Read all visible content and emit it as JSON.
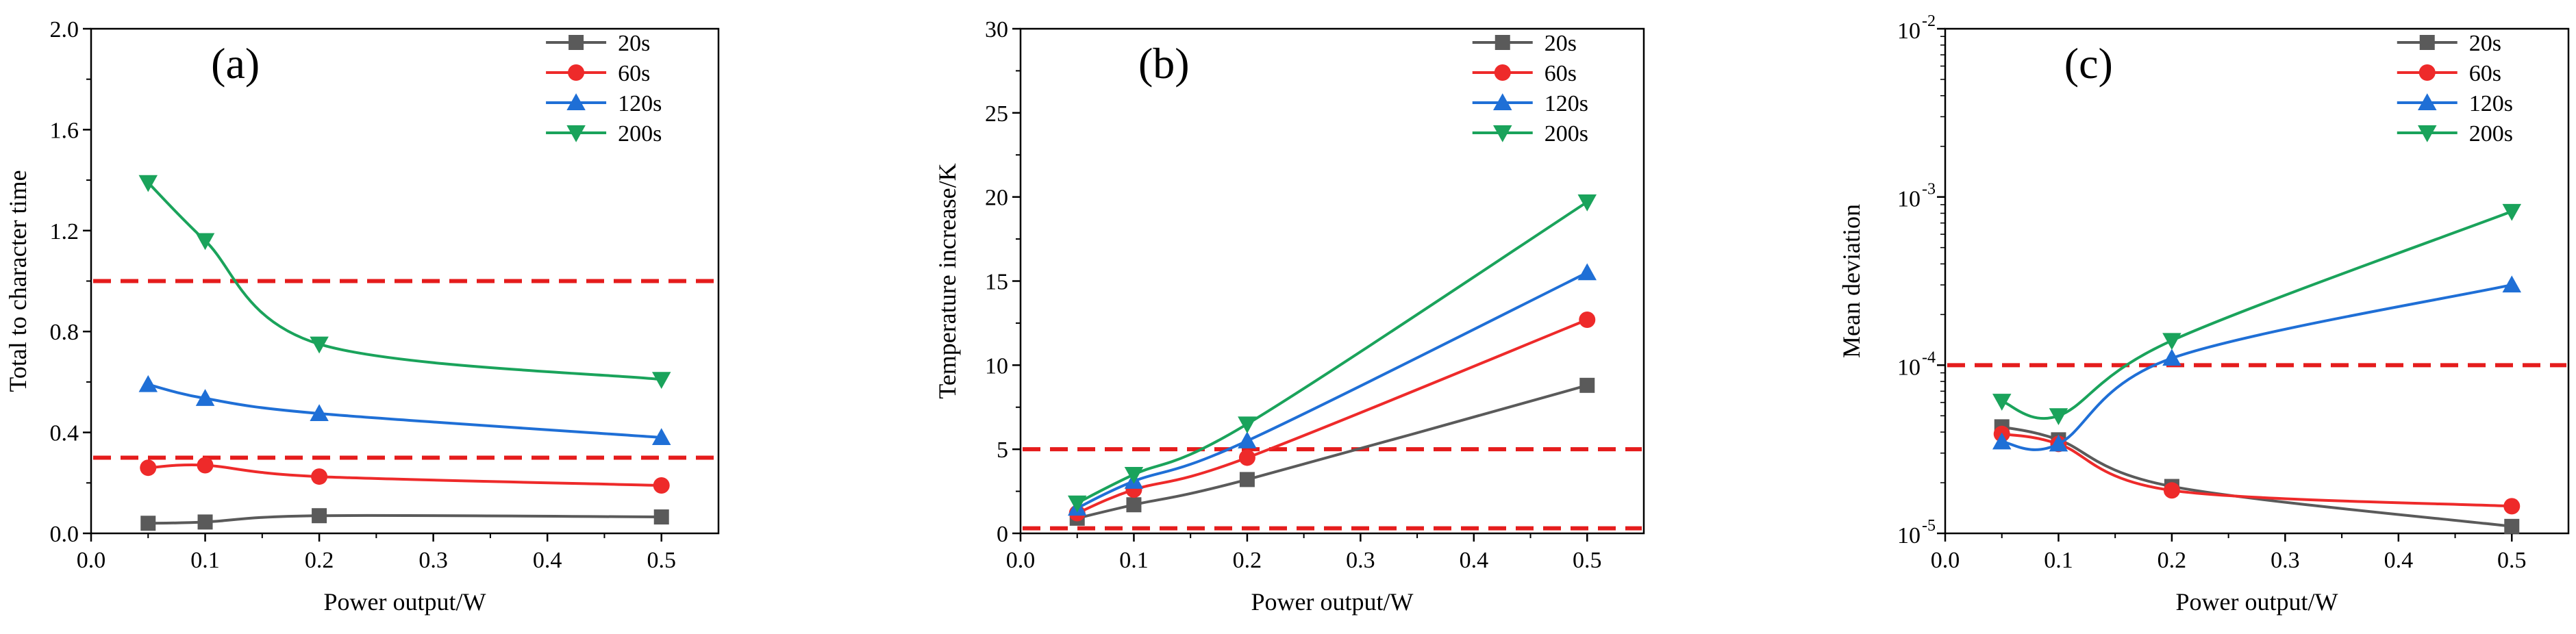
{
  "chart_data": [
    {
      "type": "line",
      "panel_label": "(a)",
      "xlabel": "Power output/W",
      "ylabel": "Total to character time",
      "xlim": [
        0.0,
        0.55
      ],
      "ylim": [
        0.0,
        2.0
      ],
      "yscale": "linear",
      "x_ticks": [
        "0.0",
        "0.1",
        "0.2",
        "0.3",
        "0.4",
        "0.5"
      ],
      "y_ticks": [
        "0.0",
        "0.4",
        "0.8",
        "1.2",
        "1.6",
        "2.0"
      ],
      "x": [
        0.05,
        0.1,
        0.2,
        0.5
      ],
      "series": [
        {
          "name": "20s",
          "color": "#5a5a5a",
          "marker": "square",
          "values": [
            0.04,
            0.045,
            0.07,
            0.065
          ]
        },
        {
          "name": "60s",
          "color": "#ee2a2a",
          "marker": "circle",
          "values": [
            0.26,
            0.27,
            0.225,
            0.19
          ]
        },
        {
          "name": "120s",
          "color": "#1f6fd6",
          "marker": "triangle-up",
          "values": [
            0.59,
            0.535,
            0.475,
            0.38
          ]
        },
        {
          "name": "200s",
          "color": "#1aa35b",
          "marker": "triangle-down",
          "values": [
            1.39,
            1.16,
            0.75,
            0.61
          ]
        }
      ],
      "reference_lines": [
        1.0,
        0.3
      ],
      "reference_color": "#e51c1c"
    },
    {
      "type": "line",
      "panel_label": "(b)",
      "xlabel": "Power output/W",
      "ylabel": "Temperature increase/K",
      "xlim": [
        0.0,
        0.55
      ],
      "ylim": [
        0,
        30
      ],
      "yscale": "linear",
      "x_ticks": [
        "0.0",
        "0.1",
        "0.2",
        "0.3",
        "0.4",
        "0.5"
      ],
      "y_ticks": [
        "0",
        "5",
        "10",
        "15",
        "20",
        "25",
        "30"
      ],
      "x": [
        0.05,
        0.1,
        0.2,
        0.5
      ],
      "series": [
        {
          "name": "20s",
          "color": "#5a5a5a",
          "marker": "square",
          "values": [
            0.9,
            1.7,
            3.2,
            8.8
          ]
        },
        {
          "name": "60s",
          "color": "#ee2a2a",
          "marker": "circle",
          "values": [
            1.2,
            2.6,
            4.5,
            12.7
          ]
        },
        {
          "name": "120s",
          "color": "#1f6fd6",
          "marker": "triangle-up",
          "values": [
            1.5,
            3.1,
            5.5,
            15.5
          ]
        },
        {
          "name": "200s",
          "color": "#1aa35b",
          "marker": "triangle-down",
          "values": [
            1.8,
            3.5,
            6.5,
            19.7
          ]
        }
      ],
      "reference_lines": [
        5.0,
        0.3
      ],
      "reference_color": "#e51c1c"
    },
    {
      "type": "line",
      "panel_label": "(c)",
      "xlabel": "Power output/W",
      "ylabel": "Mean deviation",
      "xlim": [
        0.0,
        0.55
      ],
      "ylim": [
        1e-05,
        0.01
      ],
      "yscale": "log",
      "x_ticks": [
        "0.0",
        "0.1",
        "0.2",
        "0.3",
        "0.4",
        "0.5"
      ],
      "y_ticks": [
        {
          "base": "10",
          "exp": "-5"
        },
        {
          "base": "10",
          "exp": "-4"
        },
        {
          "base": "10",
          "exp": "-3"
        },
        {
          "base": "10",
          "exp": "-2"
        }
      ],
      "x": [
        0.05,
        0.1,
        0.2,
        0.5
      ],
      "series": [
        {
          "name": "20s",
          "color": "#5a5a5a",
          "marker": "square",
          "values": [
            4.3e-05,
            3.6e-05,
            1.9e-05,
            1.1e-05
          ]
        },
        {
          "name": "60s",
          "color": "#ee2a2a",
          "marker": "circle",
          "values": [
            3.9e-05,
            3.4e-05,
            1.8e-05,
            1.45e-05
          ]
        },
        {
          "name": "120s",
          "color": "#1f6fd6",
          "marker": "triangle-up",
          "values": [
            3.5e-05,
            3.4e-05,
            0.00011,
            0.0003
          ]
        },
        {
          "name": "200s",
          "color": "#1aa35b",
          "marker": "triangle-down",
          "values": [
            6.1e-05,
            5e-05,
            0.00014,
            0.00082
          ]
        }
      ],
      "reference_lines": [
        0.0001
      ],
      "reference_color": "#e51c1c"
    }
  ]
}
